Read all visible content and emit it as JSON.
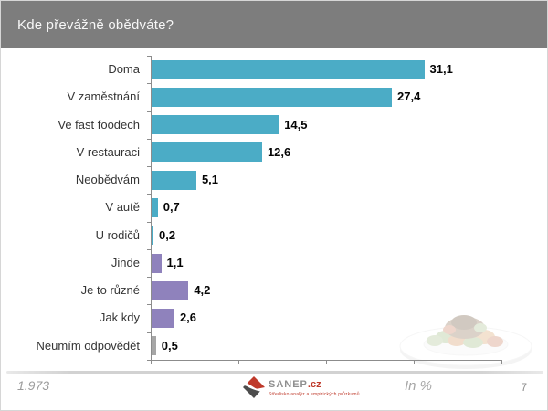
{
  "title_bar": {
    "title": "Kde převážně obědváte?",
    "background_color": "#7d7d7d",
    "text_color": "#f7f7f7"
  },
  "chart_data": {
    "type": "bar",
    "orientation": "horizontal",
    "title": "Kde převážně obědváte?",
    "unit": "%",
    "categories": [
      "Doma",
      "V zaměstnání",
      "Ve fast foodech",
      "V restauraci",
      "Neobědvám",
      "V autě",
      "U rodičů",
      "Jinde",
      "Je to různé",
      "Jak kdy",
      "Neumím odpovědět"
    ],
    "values": [
      31.1,
      27.4,
      14.5,
      12.6,
      5.1,
      0.7,
      0.2,
      1.1,
      4.2,
      2.6,
      0.5
    ],
    "value_labels": [
      "31,1",
      "27,4",
      "14,5",
      "12,6",
      "5,1",
      "0,7",
      "0,2",
      "1,1",
      "4,2",
      "2,6",
      "0,5"
    ],
    "bar_colors": [
      "#4BACC6",
      "#4BACC6",
      "#4BACC6",
      "#4BACC6",
      "#4BACC6",
      "#4BACC6",
      "#4BACC6",
      "#8F82BC",
      "#8F82BC",
      "#8F82BC",
      "#A6A6A6"
    ],
    "color_legend": {
      "teal": "#4BACC6",
      "purple": "#8F82BC",
      "gray": "#A6A6A6"
    },
    "xlim": [
      0,
      40
    ],
    "x_ticks": [
      0,
      10,
      20,
      30,
      40
    ],
    "x_tick_labels_visible": false,
    "grid": false,
    "legend": "none"
  },
  "footer": {
    "sample_size": "1.973",
    "unit_label": "In %",
    "page_number": "7",
    "logo": {
      "brand": "SANEP",
      "tld": ".cz",
      "tagline": "Středisko analýz a empirických průzkumů",
      "accent_red": "#bf3a2b",
      "gray": "#8f8f8f"
    }
  },
  "decor": {
    "plate_image": "faded-food-plate-photo"
  }
}
